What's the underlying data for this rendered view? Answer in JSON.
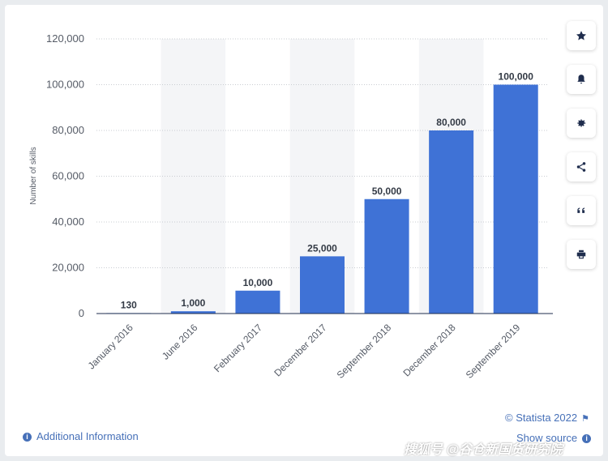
{
  "chart_data": {
    "type": "bar",
    "categories": [
      "January 2016",
      "June 2016",
      "February 2017",
      "December 2017",
      "September 2018",
      "December 2018",
      "September 2019"
    ],
    "values": [
      130,
      1000,
      10000,
      25000,
      50000,
      80000,
      100000
    ],
    "value_labels": [
      "130",
      "1,000",
      "10,000",
      "25,000",
      "50,000",
      "80,000",
      "100,000"
    ],
    "ylabel": "Number of skills",
    "ylim": [
      0,
      120000
    ],
    "yticks": [
      0,
      20000,
      40000,
      60000,
      80000,
      100000,
      120000
    ],
    "ytick_labels": [
      "0",
      "20,000",
      "40,000",
      "60,000",
      "80,000",
      "100,000",
      "120,000"
    ],
    "grid": true,
    "bar_color": "#3f72d6",
    "alternating_band_color": "#f4f5f7"
  },
  "sidebar": {
    "buttons": [
      {
        "name": "star-icon"
      },
      {
        "name": "bell-icon"
      },
      {
        "name": "gear-icon"
      },
      {
        "name": "share-icon"
      },
      {
        "name": "quote-icon"
      },
      {
        "name": "print-icon"
      }
    ]
  },
  "footer": {
    "copyright": "© Statista 2022",
    "show_source": "Show source",
    "additional_info": "Additional Information",
    "link_color": "#4670b8"
  },
  "watermark": "搜狐号 @谷仓新国货研究院"
}
